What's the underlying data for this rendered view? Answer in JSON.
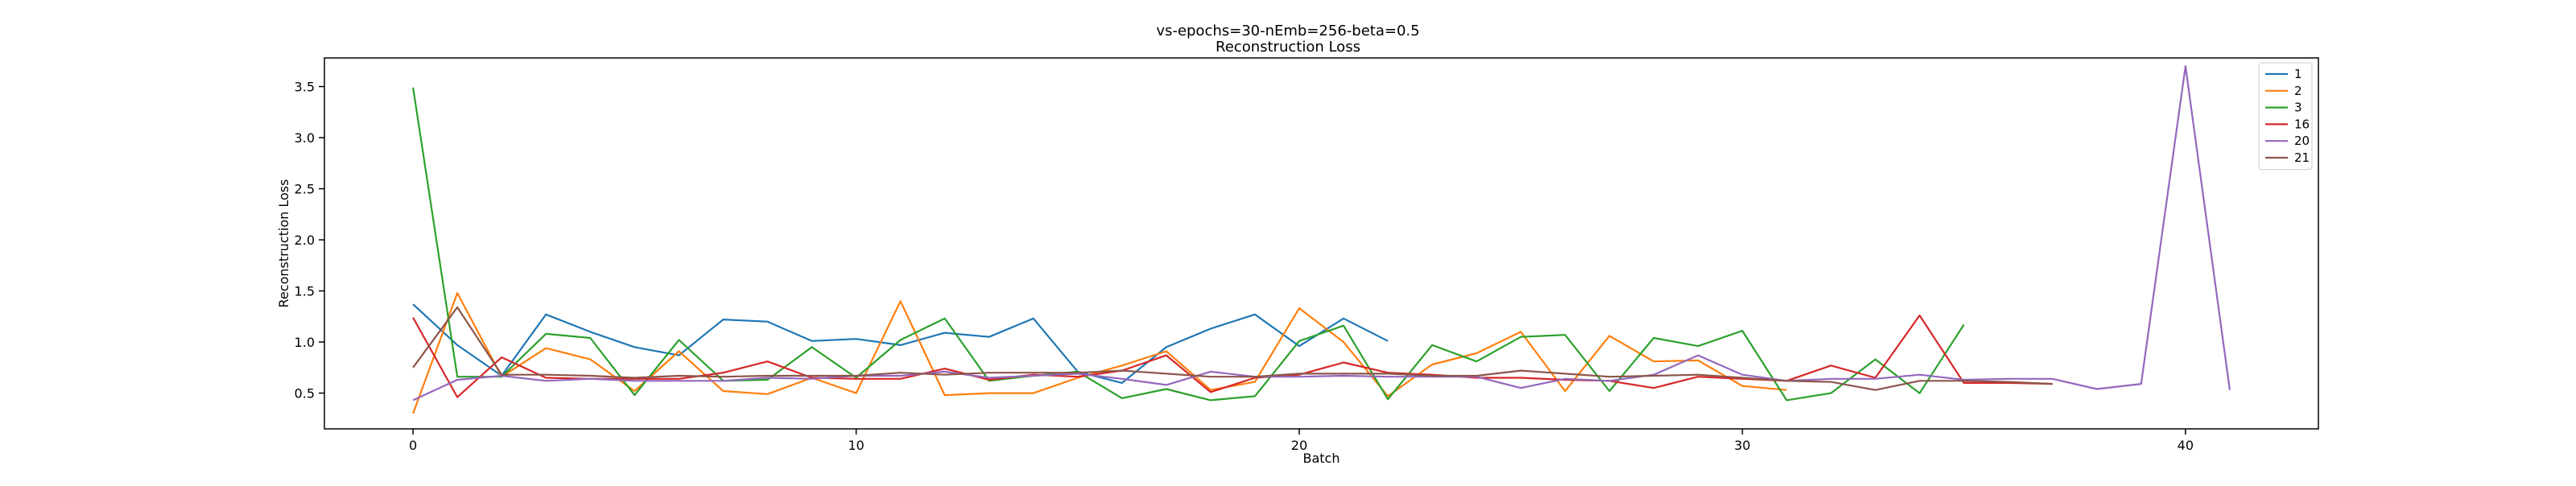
{
  "chart_data": {
    "type": "line",
    "title": "vs-epochs=30-nEmb=256-beta=0.5",
    "subtitle": "Reconstruction Loss",
    "xlabel": "Batch",
    "ylabel": "Reconstruction Loss",
    "xlim": [
      -2,
      43
    ],
    "ylim": [
      0.15,
      3.78
    ],
    "xticks": [
      0,
      10,
      20,
      30,
      40
    ],
    "yticks": [
      0.5,
      1.0,
      1.5,
      2.0,
      2.5,
      3.0,
      3.5
    ],
    "xtick_labels": [
      "0",
      "10",
      "20",
      "30",
      "40"
    ],
    "ytick_labels": [
      "0.5",
      "1.0",
      "1.5",
      "2.0",
      "2.5",
      "3.0",
      "3.5"
    ],
    "grid": false,
    "legend_position": "top-right",
    "series": [
      {
        "name": "1",
        "color": "#1f77b4",
        "values": [
          1.37,
          0.97,
          0.67,
          1.27,
          1.1,
          0.95,
          0.87,
          1.22,
          1.2,
          1.01,
          1.03,
          0.97,
          1.09,
          1.05,
          1.23,
          0.71,
          0.6,
          0.95,
          1.13,
          1.27,
          0.96,
          1.23,
          1.01
        ]
      },
      {
        "name": "2",
        "color": "#ff7f0e",
        "values": [
          0.3,
          1.48,
          0.66,
          0.94,
          0.83,
          0.52,
          0.91,
          0.52,
          0.49,
          0.65,
          0.5,
          1.4,
          0.48,
          0.5,
          0.5,
          0.65,
          0.77,
          0.91,
          0.53,
          0.61,
          1.33,
          1.0,
          0.47,
          0.78,
          0.89,
          1.1,
          0.52,
          1.06,
          0.81,
          0.82,
          0.57,
          0.53
        ]
      },
      {
        "name": "3",
        "color": "#2ca02c",
        "values": [
          3.49,
          0.66,
          0.66,
          1.08,
          1.04,
          0.48,
          1.02,
          0.62,
          0.63,
          0.95,
          0.65,
          1.02,
          1.23,
          0.62,
          0.67,
          0.71,
          0.45,
          0.54,
          0.43,
          0.47,
          1.01,
          1.16,
          0.44,
          0.97,
          0.81,
          1.05,
          1.07,
          0.52,
          1.04,
          0.96,
          1.11,
          0.43,
          0.5,
          0.83,
          0.5,
          1.17
        ]
      },
      {
        "name": "16",
        "color": "#d62728",
        "values": [
          1.24,
          0.46,
          0.85,
          0.65,
          0.64,
          0.64,
          0.64,
          0.7,
          0.81,
          0.65,
          0.64,
          0.64,
          0.74,
          0.63,
          0.68,
          0.66,
          0.72,
          0.87,
          0.51,
          0.65,
          0.68,
          0.8,
          0.7,
          0.68,
          0.65,
          0.65,
          0.63,
          0.62,
          0.55,
          0.66,
          0.64,
          0.62,
          0.77,
          0.65,
          1.26,
          0.6,
          0.6,
          0.59
        ]
      },
      {
        "name": "20",
        "color": "#9467bd",
        "values": [
          0.43,
          0.63,
          0.67,
          0.62,
          0.64,
          0.62,
          0.62,
          0.62,
          0.65,
          0.64,
          0.67,
          0.67,
          0.71,
          0.65,
          0.67,
          0.69,
          0.64,
          0.58,
          0.71,
          0.66,
          0.66,
          0.67,
          0.66,
          0.66,
          0.66,
          0.55,
          0.64,
          0.62,
          0.68,
          0.87,
          0.68,
          0.62,
          0.64,
          0.64,
          0.68,
          0.63,
          0.64,
          0.64,
          0.54,
          0.59,
          3.7,
          0.53
        ]
      },
      {
        "name": "21",
        "color": "#8c564b",
        "values": [
          0.75,
          1.34,
          0.68,
          0.68,
          0.67,
          0.65,
          0.67,
          0.66,
          0.67,
          0.67,
          0.67,
          0.7,
          0.68,
          0.7,
          0.7,
          0.7,
          0.72,
          0.69,
          0.66,
          0.66,
          0.69,
          0.69,
          0.69,
          0.67,
          0.67,
          0.72,
          0.69,
          0.66,
          0.67,
          0.68,
          0.65,
          0.62,
          0.61,
          0.53,
          0.62,
          0.62,
          0.61,
          0.59
        ]
      }
    ]
  }
}
